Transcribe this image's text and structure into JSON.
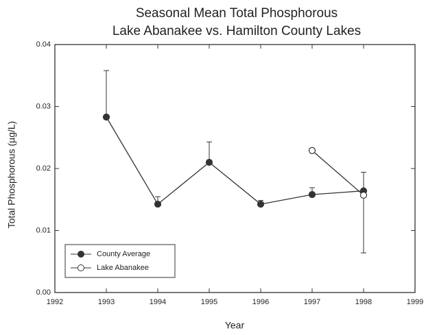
{
  "chart_data": {
    "type": "line",
    "title": "Seasonal Mean Total Phosphorous",
    "subtitle": "Lake Abanakee vs. Hamilton County Lakes",
    "xlabel": "Year",
    "ylabel": "Total Phosphorous (µg/L)",
    "x": [
      1993,
      1994,
      1995,
      1996,
      1997,
      1998
    ],
    "series": [
      {
        "name": "County Average",
        "color": "#333333",
        "filled": true,
        "values": [
          0.0283,
          0.01425,
          0.021,
          0.01425,
          0.0158,
          0.0164
        ],
        "errors": [
          0.0075,
          0.0012,
          0.0033,
          0.0006,
          0.0011,
          0.003
        ]
      },
      {
        "name": "Lake Abanakee",
        "color": "#333333",
        "filled": false,
        "values": [
          null,
          null,
          null,
          null,
          0.0229,
          0.0157
        ],
        "errors": [
          null,
          null,
          null,
          null,
          null,
          0.0093
        ]
      }
    ],
    "xlim": [
      1992,
      1999
    ],
    "xticks": [
      1992,
      1993,
      1994,
      1995,
      1996,
      1997,
      1998,
      1999
    ],
    "ylim": [
      0,
      0.04
    ],
    "yticks": [
      {
        "value": 0,
        "label": "0.00"
      },
      0.01,
      0.02,
      0.03,
      0.04
    ],
    "legend": "lower-left"
  }
}
